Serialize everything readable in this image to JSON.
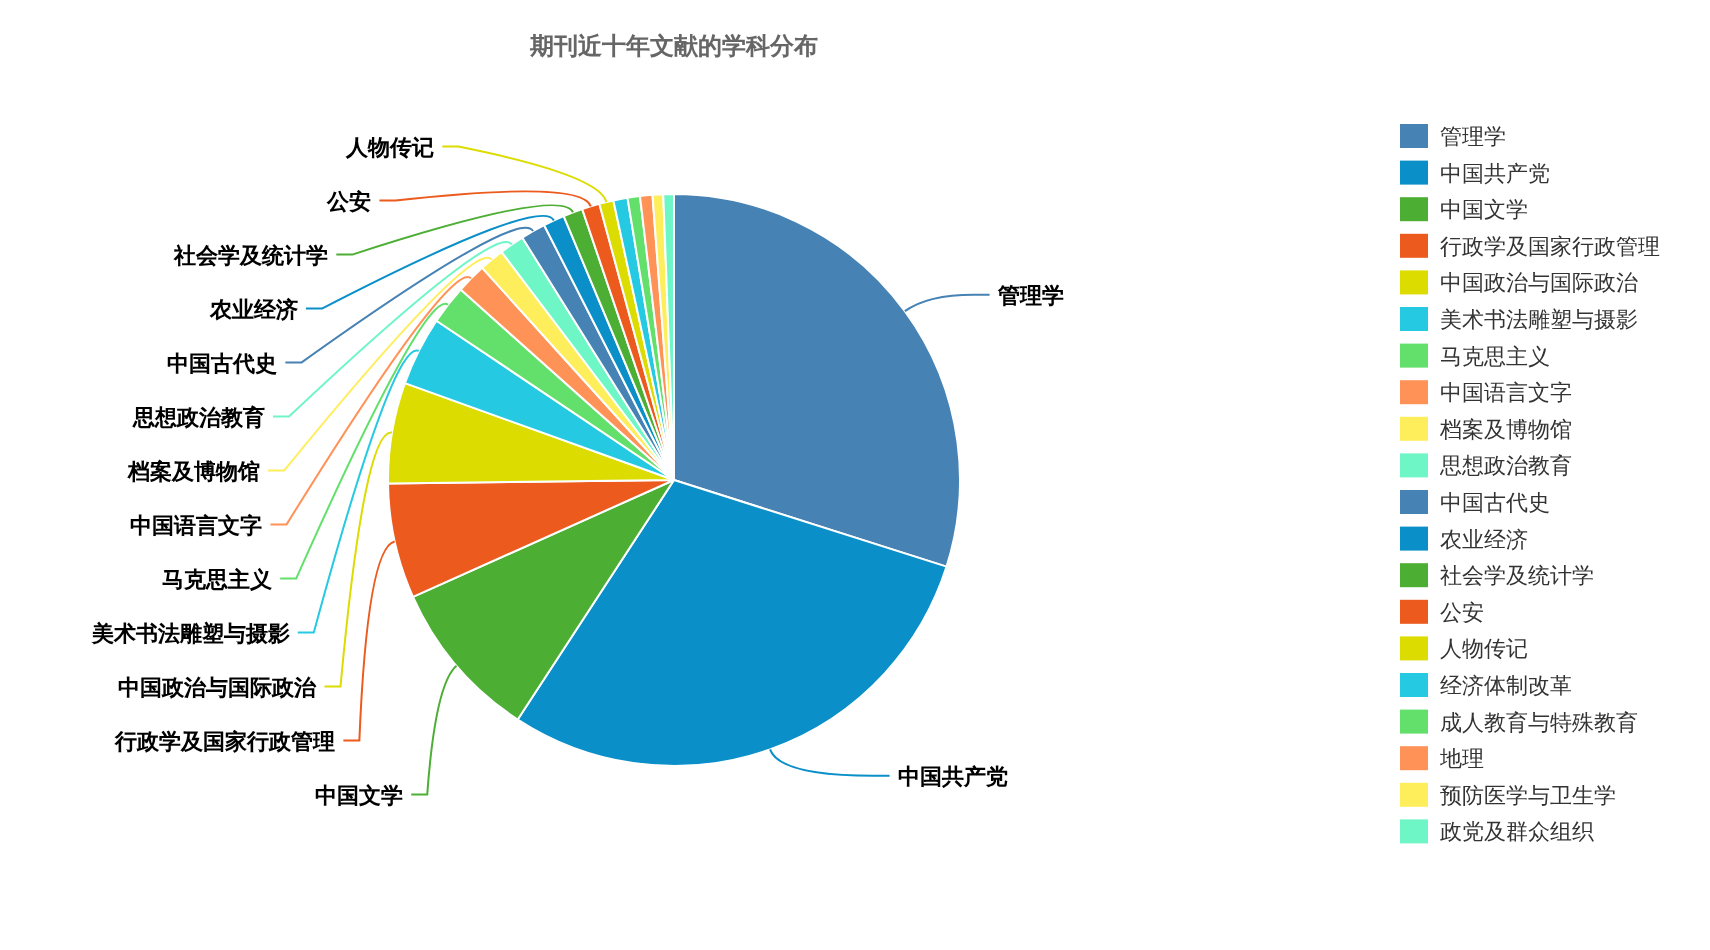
{
  "chart_data": {
    "type": "pie",
    "title": "期刊近十年文献的学科分布",
    "categories": [
      "管理学",
      "中国共产党",
      "中国文学",
      "行政学及国家行政管理",
      "中国政治与国际政治",
      "美术书法雕塑与摄影",
      "马克思主义",
      "中国语言文字",
      "档案及博物馆",
      "思想政治教育",
      "中国古代史",
      "农业经济",
      "社会学及统计学",
      "公安",
      "人物传记",
      "经济体制改革",
      "成人教育与特殊教育",
      "地理",
      "预防医学与卫生学",
      "政党及群众组织"
    ],
    "values": [
      29.9,
      29.3,
      9.1,
      6.5,
      5.7,
      3.9,
      2.2,
      1.7,
      1.4,
      1.4,
      1.4,
      1.2,
      1.1,
      1.0,
      0.8,
      0.8,
      0.7,
      0.7,
      0.6,
      0.6
    ],
    "colors": [
      "#4682b4",
      "#0a8fc9",
      "#4caf34",
      "#ec5a1d",
      "#dcdc00",
      "#26c9e2",
      "#63e06c",
      "#ff9257",
      "#ffee5c",
      "#6ef6c6",
      "#4682b4",
      "#0a8fc9",
      "#4caf34",
      "#ec5a1d",
      "#dcdc00",
      "#26c9e2",
      "#63e06c",
      "#ff9257",
      "#ffee5c",
      "#6ef6c6"
    ],
    "legend": "right"
  }
}
